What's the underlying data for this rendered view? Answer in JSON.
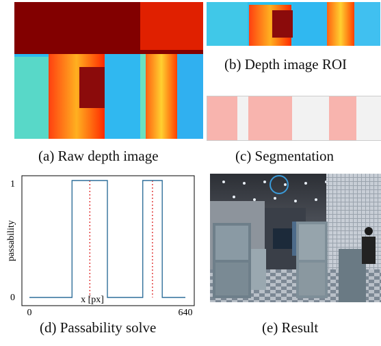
{
  "captions": {
    "a": "(a) Raw depth image",
    "b": "(b) Depth image ROI",
    "c": "(c) Segmentation",
    "d": "(d) Passability solve",
    "e": "(e)  Result"
  },
  "chart_data": {
    "type": "line",
    "xlabel": "x [px]",
    "ylabel": "passability",
    "xlim": [
      0,
      640
    ],
    "ylim": [
      0,
      1
    ],
    "xticks": [
      "0",
      "640"
    ],
    "yticks": [
      "0",
      "1"
    ],
    "series": [
      {
        "color": "#2f6f9a",
        "x": [
          0,
          175,
          175,
          320,
          320,
          465,
          465,
          545,
          545,
          640
        ],
        "y": [
          0,
          0,
          1,
          1,
          0,
          0,
          1,
          1,
          0,
          0
        ]
      }
    ],
    "markers": {
      "color": "#e03030",
      "style": "dotted",
      "x": [
        248,
        505
      ]
    }
  },
  "colors": {
    "segmentation_fill": "#f8b4ae",
    "segmentation_bg": "#f2f2f2"
  }
}
